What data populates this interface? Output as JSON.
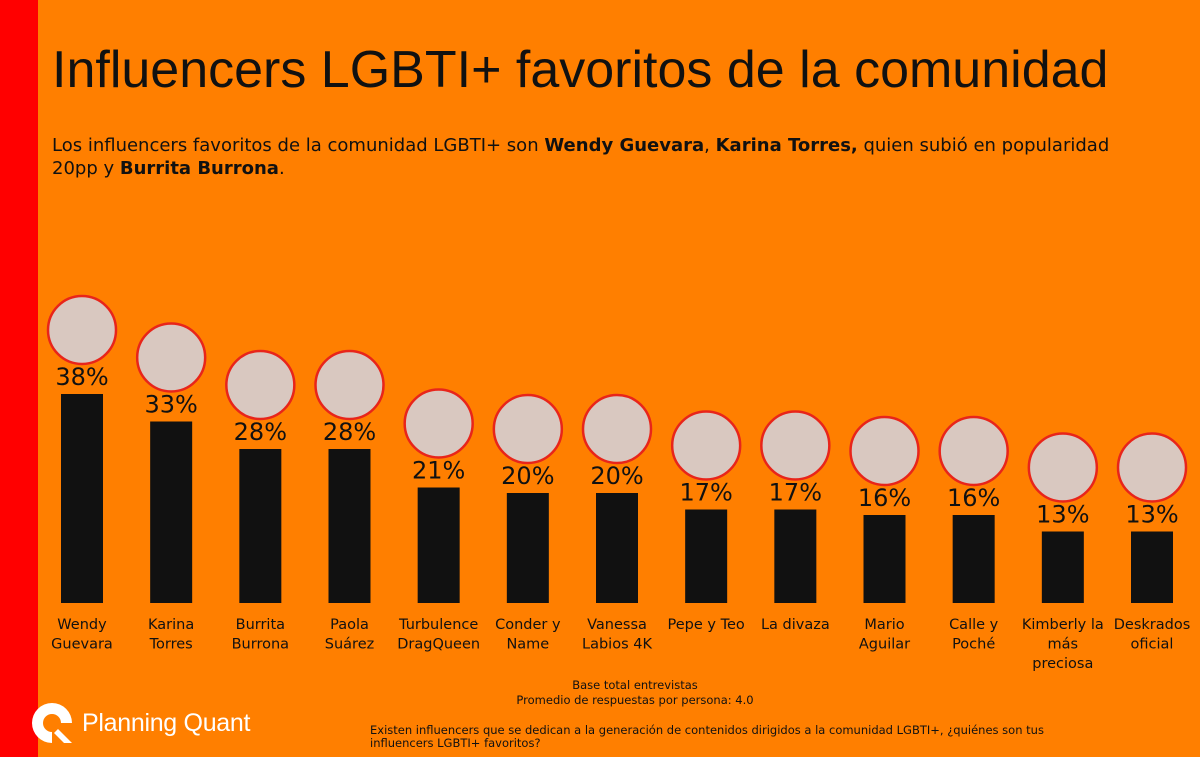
{
  "page": {
    "title": "Influencers LGBTI+ favoritos de la comunidad",
    "subtitle": {
      "t1": "Los influencers favoritos de la comunidad LGBTI+ son ",
      "b1": "Wendy Guevara",
      "t2": ", ",
      "b2": "Karina Torres,",
      "t3": " quien subió en popularidad 20pp y ",
      "b3": "Burrita Burrona",
      "t4": "."
    },
    "base_line1": "Base total entrevistas",
    "base_line2": "Promedio de respuestas por persona: 4.0",
    "question": "Existen influencers que se dedican a la generación de contenidos dirigidos a la comunidad LGBTI+, ¿quiénes son tus influencers LGBTI+ favoritos?",
    "logo_text": "Planning Quant"
  },
  "colors": {
    "background": "#ff7f00",
    "stripe": "#ff0000",
    "bar": "#111111",
    "avatar_border": "#e8251a"
  },
  "chart_data": {
    "type": "bar",
    "title": "Influencers LGBTI+ favoritos de la comunidad",
    "xlabel": "",
    "ylabel": "",
    "ylim": [
      0,
      40
    ],
    "grid": false,
    "unit": "%",
    "categories": [
      [
        "Wendy",
        "Guevara"
      ],
      [
        "Karina",
        "Torres"
      ],
      [
        "Burrita",
        "Burrona"
      ],
      [
        "Paola",
        "Suárez"
      ],
      [
        "Turbulence",
        "DragQueen"
      ],
      [
        "Conder y",
        "Name"
      ],
      [
        "Vanessa",
        "Labios 4K"
      ],
      [
        "Pepe y Teo"
      ],
      [
        "La divaza"
      ],
      [
        "Mario",
        "Aguilar"
      ],
      [
        "Calle y",
        "Poché"
      ],
      [
        "Kimberly la",
        "más",
        "preciosa"
      ],
      [
        "Deskrados",
        "oficial"
      ]
    ],
    "values": [
      38,
      33,
      28,
      28,
      21,
      20,
      20,
      17,
      17,
      16,
      16,
      13,
      13
    ],
    "data_labels": [
      "38%",
      "33%",
      "28%",
      "28%",
      "21%",
      "20%",
      "20%",
      "17%",
      "17%",
      "16%",
      "16%",
      "13%",
      "13%"
    ]
  }
}
